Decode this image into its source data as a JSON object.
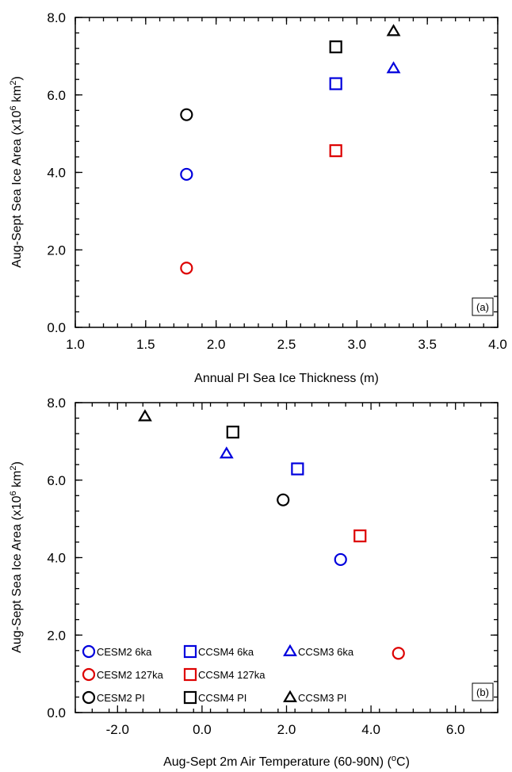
{
  "series_styles": [
    {
      "key": "CESM2 6ka",
      "color": "#0000dd",
      "marker": "circle"
    },
    {
      "key": "CESM2 127ka",
      "color": "#dd0000",
      "marker": "circle"
    },
    {
      "key": "CESM2 PI",
      "color": "#000000",
      "marker": "circle"
    },
    {
      "key": "CCSM4 6ka",
      "color": "#0000dd",
      "marker": "square"
    },
    {
      "key": "CCSM4 127ka",
      "color": "#dd0000",
      "marker": "square"
    },
    {
      "key": "CCSM4 PI",
      "color": "#000000",
      "marker": "square"
    },
    {
      "key": "CCSM3 6ka",
      "color": "#0000dd",
      "marker": "triangle"
    },
    {
      "key": "CCSM3 PI",
      "color": "#000000",
      "marker": "triangle"
    }
  ],
  "legend": {
    "placement": "bottom-left of panel (b)",
    "entries": [
      {
        "label": "CESM2 6ka",
        "style": 0
      },
      {
        "label": "CCSM4 6ka",
        "style": 3
      },
      {
        "label": "CCSM3 6ka",
        "style": 6
      },
      {
        "label": "CESM2 127ka",
        "style": 1
      },
      {
        "label": "CCSM4 127ka",
        "style": 4
      },
      {
        "label": "CESM2 PI",
        "style": 2
      },
      {
        "label": "CCSM4 PI",
        "style": 5
      },
      {
        "label": "CCSM3 PI",
        "style": 7
      }
    ]
  },
  "chart_data": [
    {
      "type": "scatter",
      "panel_label": "(a)",
      "xlabel": "Annual PI Sea Ice Thickness (m)",
      "ylabel_prefix": "Aug-Sept Sea Ice Area (x10",
      "ylabel_sup1": "6",
      "ylabel_mid": " km",
      "ylabel_sup2": "2",
      "ylabel_suffix": ")",
      "xlim": [
        1.0,
        4.0
      ],
      "ylim": [
        0.0,
        8.0
      ],
      "xticks": [
        1.0,
        1.5,
        2.0,
        2.5,
        3.0,
        3.5,
        4.0
      ],
      "xtick_labels": [
        "1.0",
        "1.5",
        "2.0",
        "2.5",
        "3.0",
        "3.5",
        "4.0"
      ],
      "yticks": [
        0.0,
        2.0,
        4.0,
        6.0,
        8.0
      ],
      "ytick_labels": [
        "0.0",
        "2.0",
        "4.0",
        "6.0",
        "8.0"
      ],
      "grid": false,
      "points": [
        {
          "series": 0,
          "x": 1.79,
          "y": 3.95
        },
        {
          "series": 1,
          "x": 1.79,
          "y": 1.53
        },
        {
          "series": 2,
          "x": 1.79,
          "y": 5.49
        },
        {
          "series": 3,
          "x": 2.85,
          "y": 6.29
        },
        {
          "series": 4,
          "x": 2.85,
          "y": 4.56
        },
        {
          "series": 5,
          "x": 2.85,
          "y": 7.24
        },
        {
          "series": 6,
          "x": 3.26,
          "y": 6.68
        },
        {
          "series": 7,
          "x": 3.26,
          "y": 7.64
        }
      ]
    },
    {
      "type": "scatter",
      "panel_label": "(b)",
      "xlabel_prefix": "Aug-Sept 2m Air Temperature (60-90N) (",
      "xlabel_sup": "o",
      "xlabel_suffix": "C)",
      "ylabel_prefix": "Aug-Sept Sea Ice Area (x10",
      "ylabel_sup1": "6",
      "ylabel_mid": " km",
      "ylabel_sup2": "2",
      "ylabel_suffix": ")",
      "xlim": [
        -3.0,
        7.0
      ],
      "ylim": [
        0.0,
        8.0
      ],
      "xticks": [
        -2.0,
        0.0,
        2.0,
        4.0,
        6.0
      ],
      "xtick_labels": [
        "-2.0",
        "0.0",
        "2.0",
        "4.0",
        "6.0"
      ],
      "yticks": [
        0.0,
        2.0,
        4.0,
        6.0,
        8.0
      ],
      "ytick_labels": [
        "0.0",
        "2.0",
        "4.0",
        "6.0",
        "8.0"
      ],
      "grid": false,
      "points": [
        {
          "series": 0,
          "x": 3.28,
          "y": 3.95
        },
        {
          "series": 1,
          "x": 4.65,
          "y": 1.53
        },
        {
          "series": 2,
          "x": 1.92,
          "y": 5.49
        },
        {
          "series": 3,
          "x": 2.26,
          "y": 6.29
        },
        {
          "series": 4,
          "x": 3.74,
          "y": 4.56
        },
        {
          "series": 5,
          "x": 0.73,
          "y": 7.24
        },
        {
          "series": 6,
          "x": 0.58,
          "y": 6.68
        },
        {
          "series": 7,
          "x": -1.35,
          "y": 7.64
        }
      ]
    }
  ]
}
